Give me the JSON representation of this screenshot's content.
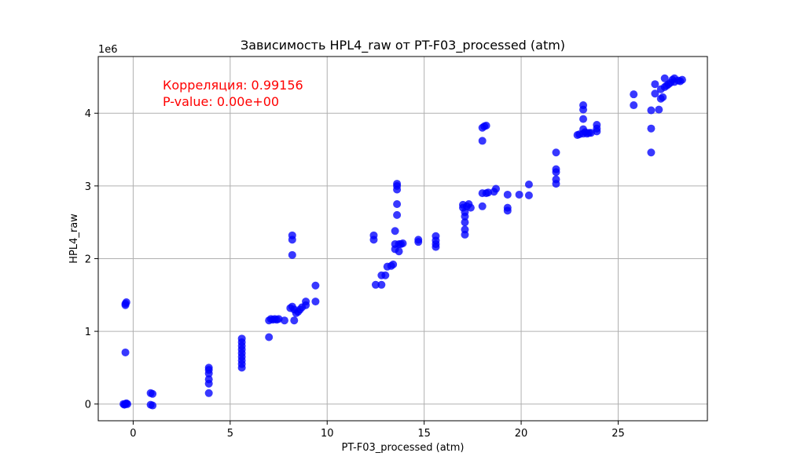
{
  "chart_data": {
    "type": "scatter",
    "title": "Зависимость HPL4_raw от PT-F03_processed (atm)",
    "xlabel": "PT-F03_processed (atm)",
    "ylabel": "HPL4_raw",
    "y_scale_label": "1e6",
    "xlim": [
      -1.8,
      29.6
    ],
    "ylim": [
      -230000,
      4780000
    ],
    "x_ticks": [
      0,
      5,
      10,
      15,
      20,
      25
    ],
    "x_tick_labels": [
      "0",
      "5",
      "10",
      "15",
      "20",
      "25"
    ],
    "y_ticks": [
      0,
      1000000,
      2000000,
      3000000,
      4000000
    ],
    "y_tick_labels": [
      "0",
      "1",
      "2",
      "3",
      "4"
    ],
    "grid": true,
    "marker_color": "#0000ff",
    "annotation_color": "#ff0000",
    "annotations": [
      "Корреляция: 0.99156",
      "P-value: 0.00e+00"
    ],
    "points": [
      [
        -0.5,
        0
      ],
      [
        -0.4,
        0
      ],
      [
        -0.3,
        0
      ],
      [
        -0.45,
        -10000
      ],
      [
        -0.35,
        10000
      ],
      [
        -0.4,
        710000
      ],
      [
        -0.4,
        1380000
      ],
      [
        -0.35,
        1400000
      ],
      [
        -0.4,
        1360000
      ],
      [
        0.9,
        150000
      ],
      [
        1.0,
        140000
      ],
      [
        0.9,
        -10000
      ],
      [
        1.0,
        -20000
      ],
      [
        3.9,
        150000
      ],
      [
        3.9,
        280000
      ],
      [
        3.9,
        340000
      ],
      [
        3.9,
        420000
      ],
      [
        3.9,
        470000
      ],
      [
        3.9,
        500000
      ],
      [
        5.6,
        500000
      ],
      [
        5.6,
        550000
      ],
      [
        5.6,
        600000
      ],
      [
        5.6,
        650000
      ],
      [
        5.6,
        700000
      ],
      [
        5.6,
        750000
      ],
      [
        5.6,
        800000
      ],
      [
        5.6,
        850000
      ],
      [
        5.6,
        900000
      ],
      [
        7.0,
        920000
      ],
      [
        7.0,
        1150000
      ],
      [
        7.1,
        1170000
      ],
      [
        7.2,
        1160000
      ],
      [
        7.3,
        1170000
      ],
      [
        7.4,
        1160000
      ],
      [
        7.5,
        1170000
      ],
      [
        7.8,
        1150000
      ],
      [
        8.1,
        1320000
      ],
      [
        8.2,
        1340000
      ],
      [
        8.3,
        1300000
      ],
      [
        8.3,
        1150000
      ],
      [
        8.2,
        2050000
      ],
      [
        8.2,
        2260000
      ],
      [
        8.2,
        2320000
      ],
      [
        8.4,
        1250000
      ],
      [
        8.5,
        1270000
      ],
      [
        8.6,
        1300000
      ],
      [
        8.7,
        1330000
      ],
      [
        8.9,
        1360000
      ],
      [
        8.9,
        1410000
      ],
      [
        9.4,
        1410000
      ],
      [
        9.4,
        1630000
      ],
      [
        12.4,
        2260000
      ],
      [
        12.4,
        2320000
      ],
      [
        12.5,
        1640000
      ],
      [
        12.8,
        1640000
      ],
      [
        12.8,
        1770000
      ],
      [
        13.0,
        1770000
      ],
      [
        13.1,
        1890000
      ],
      [
        13.3,
        1900000
      ],
      [
        13.4,
        1920000
      ],
      [
        13.5,
        2200000
      ],
      [
        13.5,
        2380000
      ],
      [
        13.6,
        2600000
      ],
      [
        13.6,
        2750000
      ],
      [
        13.6,
        2950000
      ],
      [
        13.6,
        3000000
      ],
      [
        13.6,
        3030000
      ],
      [
        13.5,
        2130000
      ],
      [
        13.7,
        2100000
      ],
      [
        13.7,
        2200000
      ],
      [
        13.8,
        2200000
      ],
      [
        13.9,
        2210000
      ],
      [
        14.7,
        2230000
      ],
      [
        14.7,
        2260000
      ],
      [
        15.6,
        2160000
      ],
      [
        15.6,
        2200000
      ],
      [
        15.6,
        2250000
      ],
      [
        15.6,
        2310000
      ],
      [
        17.0,
        2700000
      ],
      [
        17.0,
        2740000
      ],
      [
        17.1,
        2330000
      ],
      [
        17.1,
        2400000
      ],
      [
        17.1,
        2500000
      ],
      [
        17.1,
        2580000
      ],
      [
        17.1,
        2640000
      ],
      [
        17.2,
        2720000
      ],
      [
        17.3,
        2750000
      ],
      [
        17.4,
        2700000
      ],
      [
        18.0,
        2720000
      ],
      [
        18.0,
        2900000
      ],
      [
        18.0,
        3620000
      ],
      [
        18.0,
        3800000
      ],
      [
        18.2,
        3830000
      ],
      [
        18.1,
        3820000
      ],
      [
        18.2,
        2900000
      ],
      [
        18.3,
        2910000
      ],
      [
        18.6,
        2920000
      ],
      [
        18.7,
        2960000
      ],
      [
        19.3,
        2660000
      ],
      [
        19.3,
        2700000
      ],
      [
        19.3,
        2880000
      ],
      [
        19.9,
        2880000
      ],
      [
        20.4,
        2870000
      ],
      [
        20.4,
        3020000
      ],
      [
        21.8,
        3030000
      ],
      [
        21.8,
        3090000
      ],
      [
        21.8,
        3190000
      ],
      [
        21.8,
        3230000
      ],
      [
        21.8,
        3460000
      ],
      [
        22.9,
        3700000
      ],
      [
        23.0,
        3710000
      ],
      [
        23.2,
        3720000
      ],
      [
        23.2,
        3780000
      ],
      [
        23.2,
        3920000
      ],
      [
        23.2,
        4050000
      ],
      [
        23.2,
        4110000
      ],
      [
        23.3,
        3740000
      ],
      [
        23.4,
        3720000
      ],
      [
        23.5,
        3730000
      ],
      [
        23.6,
        3730000
      ],
      [
        23.9,
        3750000
      ],
      [
        23.9,
        3790000
      ],
      [
        23.9,
        3840000
      ],
      [
        25.8,
        4110000
      ],
      [
        25.8,
        4260000
      ],
      [
        26.7,
        3460000
      ],
      [
        26.7,
        3790000
      ],
      [
        26.7,
        4040000
      ],
      [
        26.9,
        4270000
      ],
      [
        26.9,
        4400000
      ],
      [
        27.1,
        4050000
      ],
      [
        27.2,
        4200000
      ],
      [
        27.3,
        4220000
      ],
      [
        27.2,
        4330000
      ],
      [
        27.4,
        4360000
      ],
      [
        27.5,
        4380000
      ],
      [
        27.4,
        4480000
      ],
      [
        27.6,
        4400000
      ],
      [
        27.7,
        4420000
      ],
      [
        27.8,
        4460000
      ],
      [
        27.9,
        4480000
      ],
      [
        27.9,
        4430000
      ],
      [
        28.1,
        4450000
      ],
      [
        28.2,
        4440000
      ],
      [
        28.3,
        4460000
      ]
    ]
  }
}
